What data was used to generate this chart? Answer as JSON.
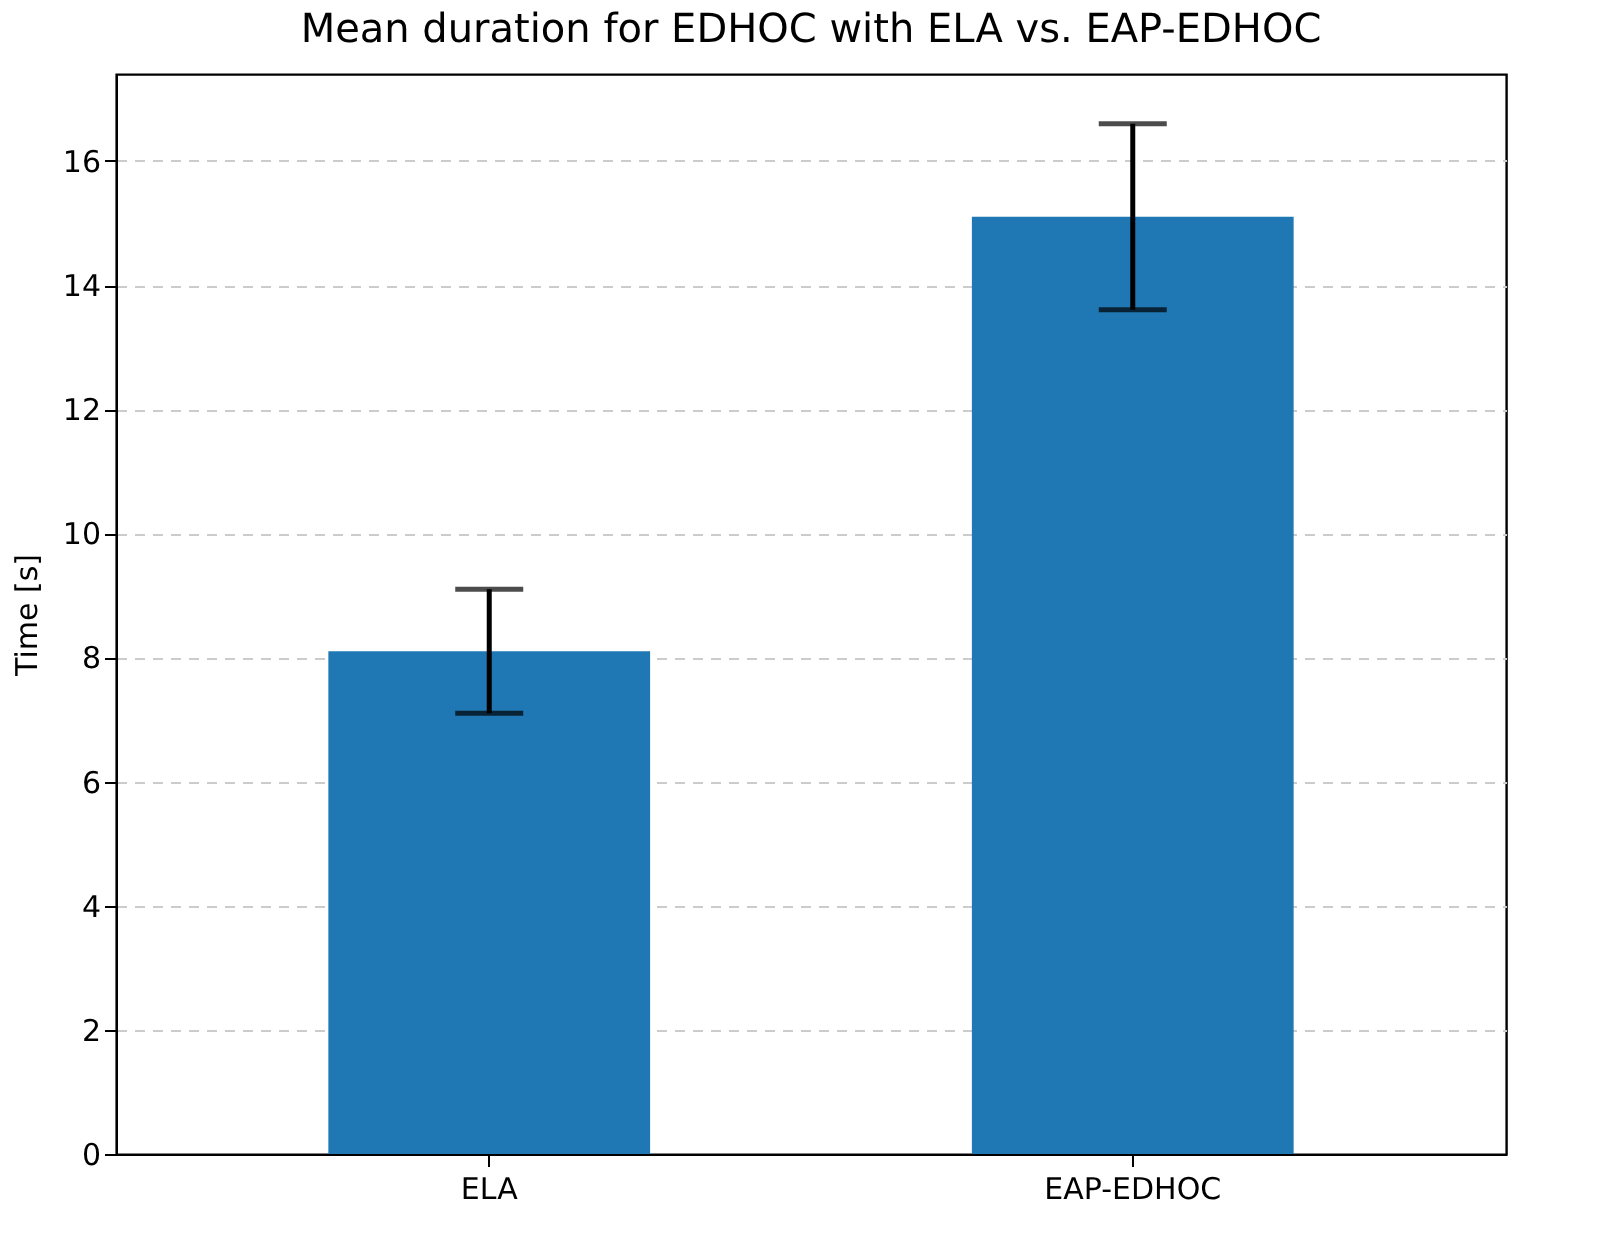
{
  "chart_data": {
    "type": "bar",
    "title": "Mean duration for EDHOC with ELA vs. EAP-EDHOC",
    "ylabel": "Time [s]",
    "categories": [
      "ELA",
      "EAP-EDHOC"
    ],
    "values": [
      8.1,
      15.1
    ],
    "errors": [
      1.0,
      1.5
    ],
    "color": "#1f77b4",
    "ylim": [
      0,
      17.4
    ],
    "yticks": [
      0,
      2,
      4,
      6,
      8,
      10,
      12,
      14,
      16
    ],
    "grid": "y",
    "line_style": "dashed"
  }
}
